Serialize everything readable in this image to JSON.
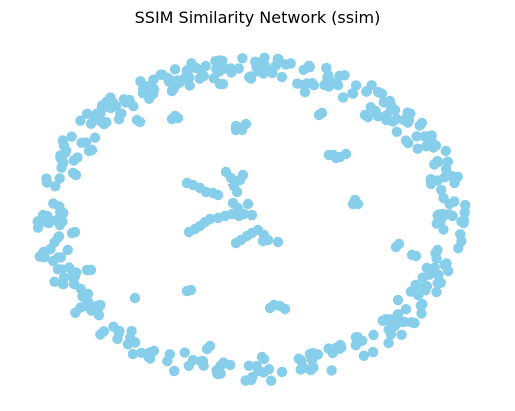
{
  "title": "SSIM Similarity Network (ssim)",
  "colors": {
    "node": "#87ceeb",
    "edge": "#808080",
    "background": "#ffffff"
  },
  "network": {
    "layout": "nodes arranged in an outer ring with small clusters and chains in the interior",
    "has_edges": true
  }
}
